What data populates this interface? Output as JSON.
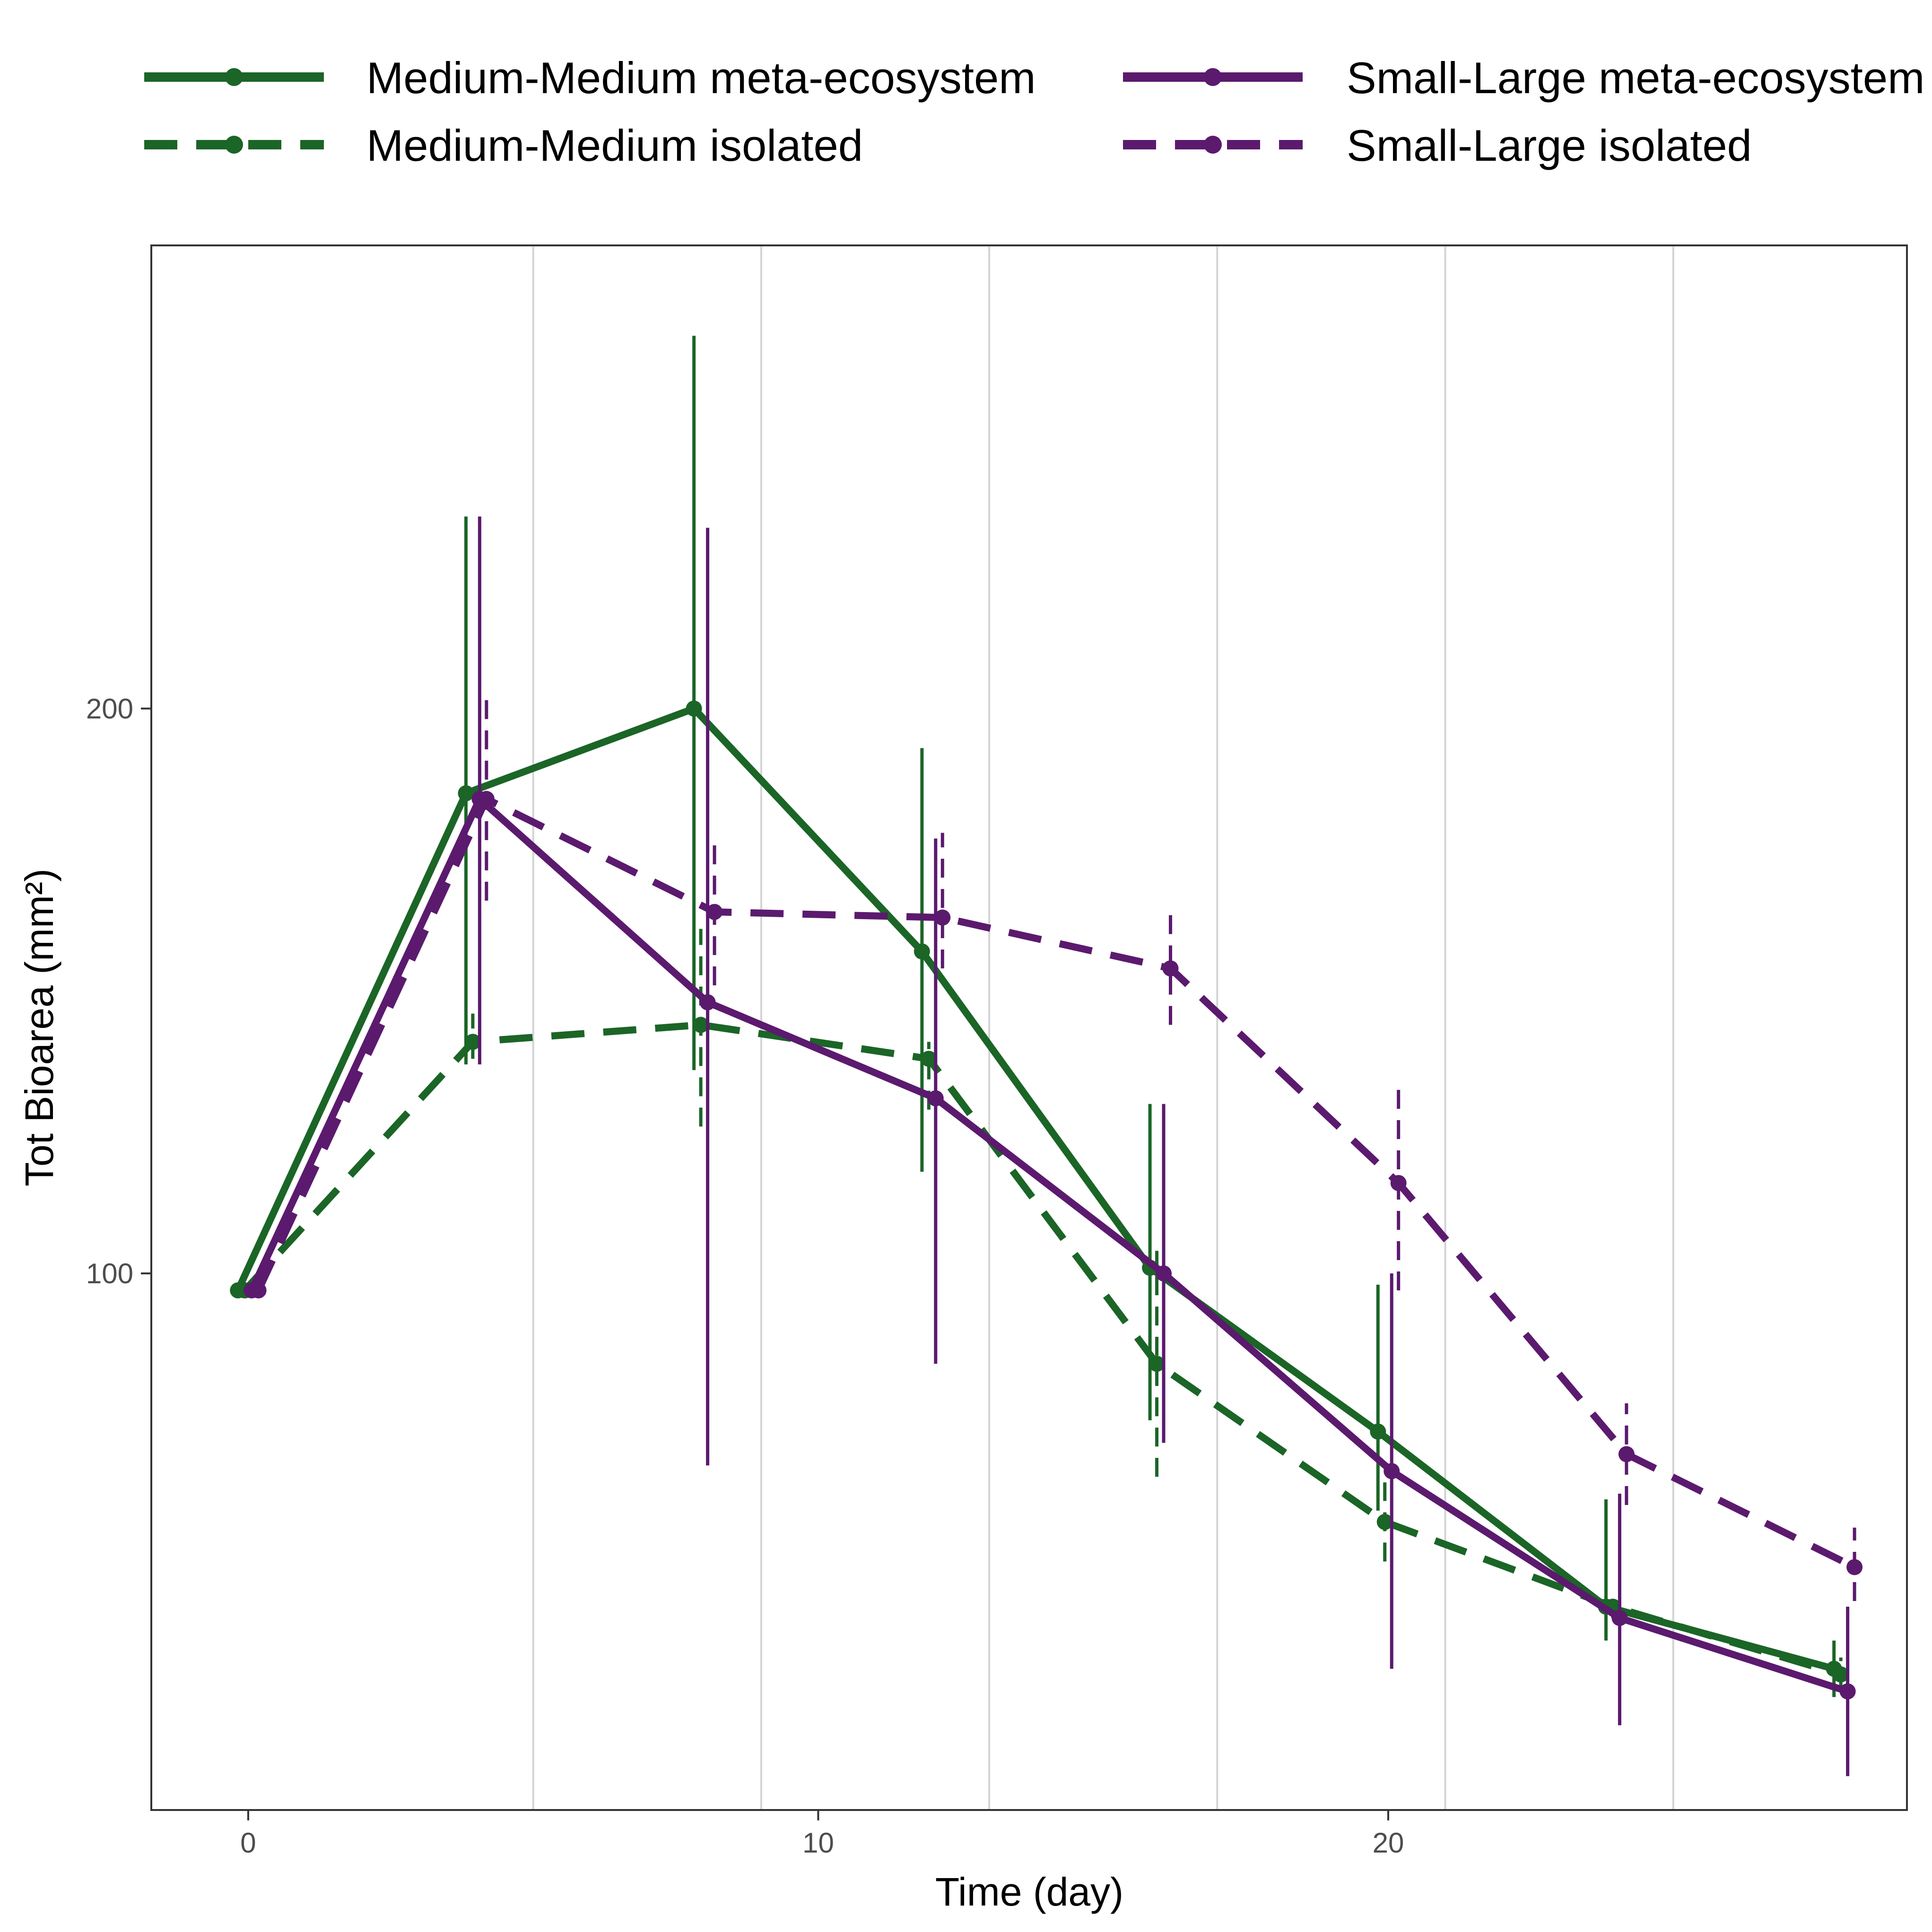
{
  "chart_data": {
    "type": "line",
    "title": "",
    "xlabel": "Time (day)",
    "ylabel": "Tot Bioarea (mm²)",
    "xlim": [
      -1.7,
      29.1
    ],
    "ylim": [
      5,
      282
    ],
    "x_ticks": [
      0,
      10,
      20
    ],
    "y_ticks": [
      100,
      200
    ],
    "x_tick_labels": [
      "0",
      "10",
      "20"
    ],
    "y_tick_labels": [
      "100",
      "200"
    ],
    "grid": {
      "vertical_minor_only": true,
      "vertical_lines": [
        5,
        9,
        13,
        17,
        21,
        25
      ]
    },
    "legend": {
      "placement": "top",
      "columns": 2
    },
    "error_bars": true,
    "x": [
      0,
      4,
      8,
      12,
      16,
      20,
      24,
      28
    ],
    "series": [
      {
        "name": "Medium-Medium meta-ecosystem",
        "color": "#1b6527",
        "dash": "solid",
        "x_offset": -0.18,
        "values": [
          97,
          185,
          200,
          157,
          101,
          72,
          41,
          30
        ],
        "error_low": [
          null,
          137,
          136,
          118,
          74,
          58,
          35,
          25
        ],
        "error_high": [
          null,
          234,
          266,
          193,
          130,
          98,
          60,
          35
        ]
      },
      {
        "name": "Medium-Medium isolated",
        "color": "#1b6527",
        "dash": "dashed",
        "x_offset": -0.06,
        "values": [
          97,
          141,
          144,
          138,
          84,
          56,
          41,
          29
        ],
        "error_low": [
          null,
          138,
          126,
          129,
          64,
          49,
          39,
          26
        ],
        "error_high": [
          null,
          146,
          161,
          141,
          104,
          63,
          42,
          32
        ]
      },
      {
        "name": "Small-Large meta-ecosystem",
        "color": "#5b1a6e",
        "dash": "solid",
        "x_offset": 0.06,
        "values": [
          97,
          184,
          148,
          131,
          100,
          65,
          39,
          26
        ],
        "error_low": [
          null,
          137,
          66,
          84,
          70,
          30,
          20,
          11
        ],
        "error_high": [
          null,
          234,
          232,
          177,
          130,
          100,
          61,
          41
        ]
      },
      {
        "name": "Small-Large isolated",
        "color": "#5b1a6e",
        "dash": "dashed",
        "x_offset": 0.18,
        "values": [
          97,
          184,
          164,
          163,
          154,
          116,
          68,
          48
        ],
        "error_low": [
          null,
          166,
          151,
          154,
          144,
          97,
          59,
          42
        ],
        "error_high": [
          null,
          203,
          177,
          178,
          164,
          134,
          77,
          55
        ]
      }
    ]
  }
}
